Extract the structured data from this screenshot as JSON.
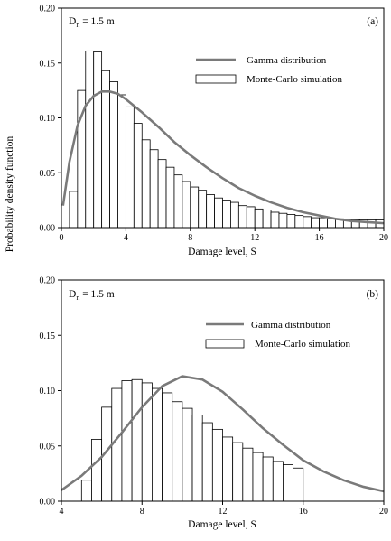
{
  "ylabel": "Probability density function",
  "chart_data": [
    {
      "type": "bar",
      "panel_label": "(a)",
      "annotation_main": "D",
      "annotation_sub": "n",
      "annotation_rest": " = 1.5 m",
      "xlabel": "Damage level, S",
      "ylabel": "Probability density function",
      "xlim": [
        0,
        20
      ],
      "ylim": [
        0,
        0.2
      ],
      "xticks": [
        "0",
        "4",
        "8",
        "12",
        "16",
        "20"
      ],
      "yticks": [
        "0.00",
        "0.05",
        "0.10",
        "0.15",
        "0.20"
      ],
      "legend_position": "top-right",
      "series": [
        {
          "name": "Gamma distribution",
          "kind": "line",
          "color": "#7a7a7a",
          "points": [
            [
              0.1,
              0.02
            ],
            [
              0.5,
              0.06
            ],
            [
              1,
              0.093
            ],
            [
              1.5,
              0.111
            ],
            [
              2,
              0.12
            ],
            [
              2.5,
              0.124
            ],
            [
              3,
              0.124
            ],
            [
              3.5,
              0.122
            ],
            [
              4,
              0.117
            ],
            [
              5,
              0.105
            ],
            [
              6,
              0.092
            ],
            [
              7,
              0.078
            ],
            [
              8,
              0.066
            ],
            [
              9,
              0.055
            ],
            [
              10,
              0.045
            ],
            [
              11,
              0.036
            ],
            [
              12,
              0.029
            ],
            [
              13,
              0.023
            ],
            [
              14,
              0.018
            ],
            [
              15,
              0.014
            ],
            [
              16,
              0.011
            ],
            [
              17,
              0.008
            ],
            [
              18,
              0.006
            ],
            [
              19,
              0.005
            ],
            [
              20,
              0.004
            ]
          ]
        },
        {
          "name": "Monte-Carlo simulation",
          "kind": "histogram",
          "bin_width": 0.5,
          "bin_start": 0.5,
          "values": [
            0.033,
            0.125,
            0.161,
            0.16,
            0.143,
            0.133,
            0.121,
            0.11,
            0.095,
            0.08,
            0.071,
            0.062,
            0.055,
            0.048,
            0.042,
            0.037,
            0.034,
            0.03,
            0.027,
            0.025,
            0.023,
            0.02,
            0.019,
            0.017,
            0.016,
            0.014,
            0.013,
            0.012,
            0.011,
            0.01,
            0.009,
            0.009,
            0.008,
            0.008,
            0.007,
            0.007,
            0.007,
            0.007,
            0.007
          ]
        }
      ]
    },
    {
      "type": "bar",
      "panel_label": "(b)",
      "annotation_main": "D",
      "annotation_sub": "n",
      "annotation_rest": " = 1.5 m",
      "xlabel": "Damage level, S",
      "ylabel": "Probability density function",
      "xlim": [
        4,
        20
      ],
      "ylim": [
        0,
        0.2
      ],
      "xticks": [
        "4",
        "8",
        "12",
        "16",
        "20"
      ],
      "yticks": [
        "0.00",
        "0.05",
        "0.10",
        "0.15",
        "0.20"
      ],
      "legend_position": "top-right",
      "series": [
        {
          "name": "Gamma distribution",
          "kind": "line",
          "color": "#7a7a7a",
          "points": [
            [
              4,
              0.01
            ],
            [
              5,
              0.023
            ],
            [
              6,
              0.04
            ],
            [
              7,
              0.062
            ],
            [
              8,
              0.085
            ],
            [
              9,
              0.104
            ],
            [
              10,
              0.113
            ],
            [
              11,
              0.11
            ],
            [
              12,
              0.099
            ],
            [
              13,
              0.083
            ],
            [
              14,
              0.066
            ],
            [
              15,
              0.051
            ],
            [
              16,
              0.037
            ],
            [
              17,
              0.027
            ],
            [
              18,
              0.019
            ],
            [
              19,
              0.013
            ],
            [
              20,
              0.009
            ]
          ]
        },
        {
          "name": "Monte-Carlo simulation",
          "kind": "histogram",
          "bin_width": 0.5,
          "bin_start": 5,
          "values": [
            0.019,
            0.056,
            0.085,
            0.102,
            0.109,
            0.11,
            0.107,
            0.102,
            0.098,
            0.09,
            0.084,
            0.078,
            0.071,
            0.065,
            0.058,
            0.053,
            0.048,
            0.044,
            0.04,
            0.036,
            0.033,
            0.03
          ]
        }
      ]
    }
  ]
}
